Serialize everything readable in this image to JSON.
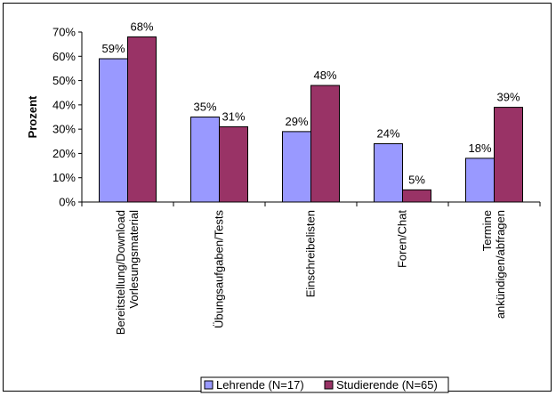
{
  "chart_data": {
    "type": "bar",
    "title": "",
    "xlabel": "",
    "ylabel": "Prozent",
    "ylim": [
      0,
      70
    ],
    "yticks": [
      "0%",
      "10%",
      "20%",
      "30%",
      "40%",
      "50%",
      "60%",
      "70%"
    ],
    "categories": [
      [
        "Bereitstellung/Download",
        "Vorlesungsmaterial"
      ],
      [
        "Übungsaufgaben/Tests"
      ],
      [
        "Einschreibelisten"
      ],
      [
        "Foren/Chat"
      ],
      [
        "Termine",
        "ankündigen/abfragen"
      ]
    ],
    "series": [
      {
        "name": "Lehrende (N=17)",
        "color": "#9999ff",
        "values": [
          59,
          35,
          29,
          24,
          18
        ],
        "labels": [
          "59%",
          "35%",
          "29%",
          "24%",
          "18%"
        ]
      },
      {
        "name": "Studierende (N=65)",
        "color": "#993366",
        "values": [
          68,
          31,
          48,
          5,
          39
        ],
        "labels": [
          "68%",
          "31%",
          "48%",
          "5%",
          "39%"
        ]
      }
    ],
    "grid": false,
    "legend_position": "bottom"
  }
}
